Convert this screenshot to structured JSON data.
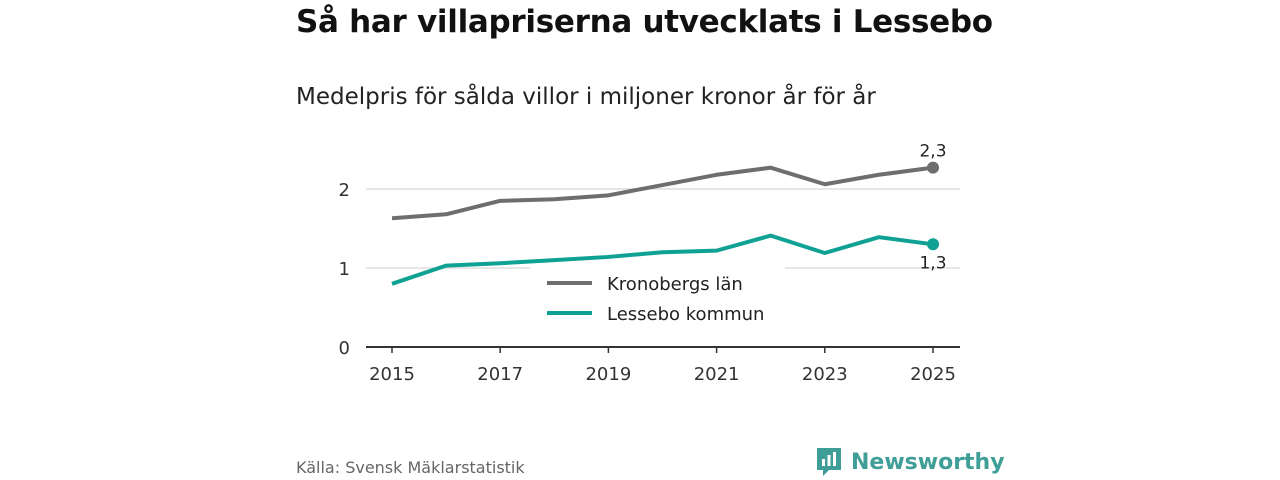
{
  "title": "Så har villapriserna utvecklats i Lessebo",
  "subtitle": "Medelpris för sålda villor i miljoner kronor år för år",
  "source": "Källa: Svensk Mäklarstatistik",
  "logo": "Newsworthy",
  "colors": {
    "kronoberg": "#6e6e6e",
    "lessebo": "#0fa193",
    "grid": "#dddddd",
    "axis": "#333333"
  },
  "chart_data": {
    "type": "line",
    "title": "Så har villapriserna utvecklats i Lessebo",
    "subtitle": "Medelpris för sålda villor i miljoner kronor år för år",
    "xlabel": "",
    "ylabel": "",
    "x": [
      2015,
      2016,
      2017,
      2018,
      2019,
      2020,
      2021,
      2022,
      2023,
      2024,
      2025
    ],
    "xticks": [
      "2015",
      "2017",
      "2019",
      "2021",
      "2023",
      "2025"
    ],
    "yticks": [
      "0",
      "1",
      "2"
    ],
    "ylim": [
      0,
      2.5
    ],
    "grid": true,
    "legend_position": "center",
    "series": [
      {
        "name": "Kronobergs län",
        "color": "#6e6e6e",
        "values": [
          1.63,
          1.68,
          1.85,
          1.87,
          1.92,
          2.05,
          2.18,
          2.27,
          2.06,
          2.18,
          2.27
        ],
        "end_label": "2,3"
      },
      {
        "name": "Lessebo kommun",
        "color": "#0fa193",
        "values": [
          0.8,
          1.03,
          1.06,
          1.1,
          1.14,
          1.2,
          1.22,
          1.41,
          1.19,
          1.39,
          1.3
        ],
        "end_label": "1,3"
      }
    ]
  }
}
